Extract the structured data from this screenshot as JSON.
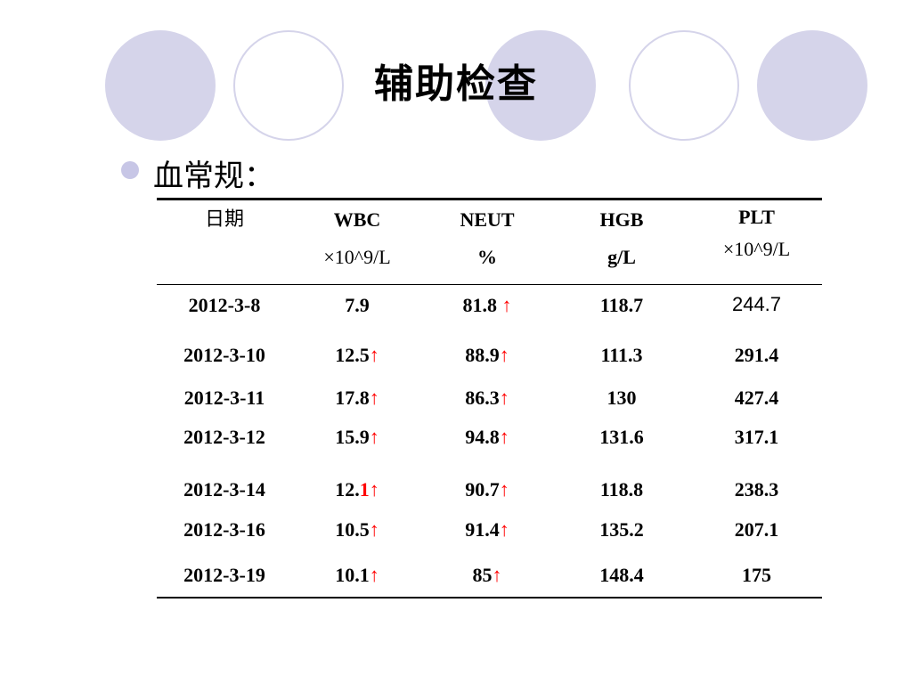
{
  "title": "辅助检查",
  "bullet": "血常规：",
  "table": {
    "headers": [
      {
        "line1": "日期",
        "line2": ""
      },
      {
        "line1": "WBC",
        "line2": "×10^9/L"
      },
      {
        "line1": "NEUT",
        "line2": "%"
      },
      {
        "line1": "HGB",
        "line2": "g/L"
      },
      {
        "line1": "PLT",
        "line2": "×10^9/L"
      }
    ],
    "rows": [
      {
        "date": "2012-3-8",
        "wbc": "7.9",
        "wbc_arrow": "",
        "neut": "81.8 ",
        "neut_arrow": "↑",
        "hgb": "118.7",
        "plt": "244.7"
      },
      {
        "date": "2012-3-10",
        "wbc": "12.5",
        "wbc_arrow": "↑",
        "neut": "88.9",
        "neut_arrow": "↑",
        "hgb": "111.3",
        "plt": "291.4"
      },
      {
        "date": "2012-3-11",
        "wbc": "17.8",
        "wbc_arrow": "↑",
        "neut": "86.3",
        "neut_arrow": "↑",
        "hgb": "130",
        "plt": "427.4"
      },
      {
        "date": "2012-3-12",
        "wbc": "15.9",
        "wbc_arrow": "↑",
        "neut": "94.8",
        "neut_arrow": "↑",
        "hgb": "131.6",
        "plt": "317.1"
      },
      {
        "date": "2012-3-14",
        "wbc": "12.",
        "wbc_red": "1",
        "wbc_arrow": "↑",
        "neut": "90.7",
        "neut_arrow": "↑",
        "hgb": "118.8",
        "plt": "238.3"
      },
      {
        "date": "2012-3-16",
        "wbc": "10.5",
        "wbc_arrow": "↑",
        "neut": "91.4",
        "neut_arrow": "↑",
        "hgb": "135.2",
        "plt": "207.1"
      },
      {
        "date": "2012-3-19",
        "wbc": "10.1",
        "wbc_arrow": "↑",
        "neut": "85",
        "neut_arrow": "↑",
        "hgb": "148.4",
        "plt": "175"
      }
    ]
  },
  "colors": {
    "circle": "#d5d4ea",
    "bullet": "#c7c6e6",
    "arrow": "#ff0000"
  }
}
